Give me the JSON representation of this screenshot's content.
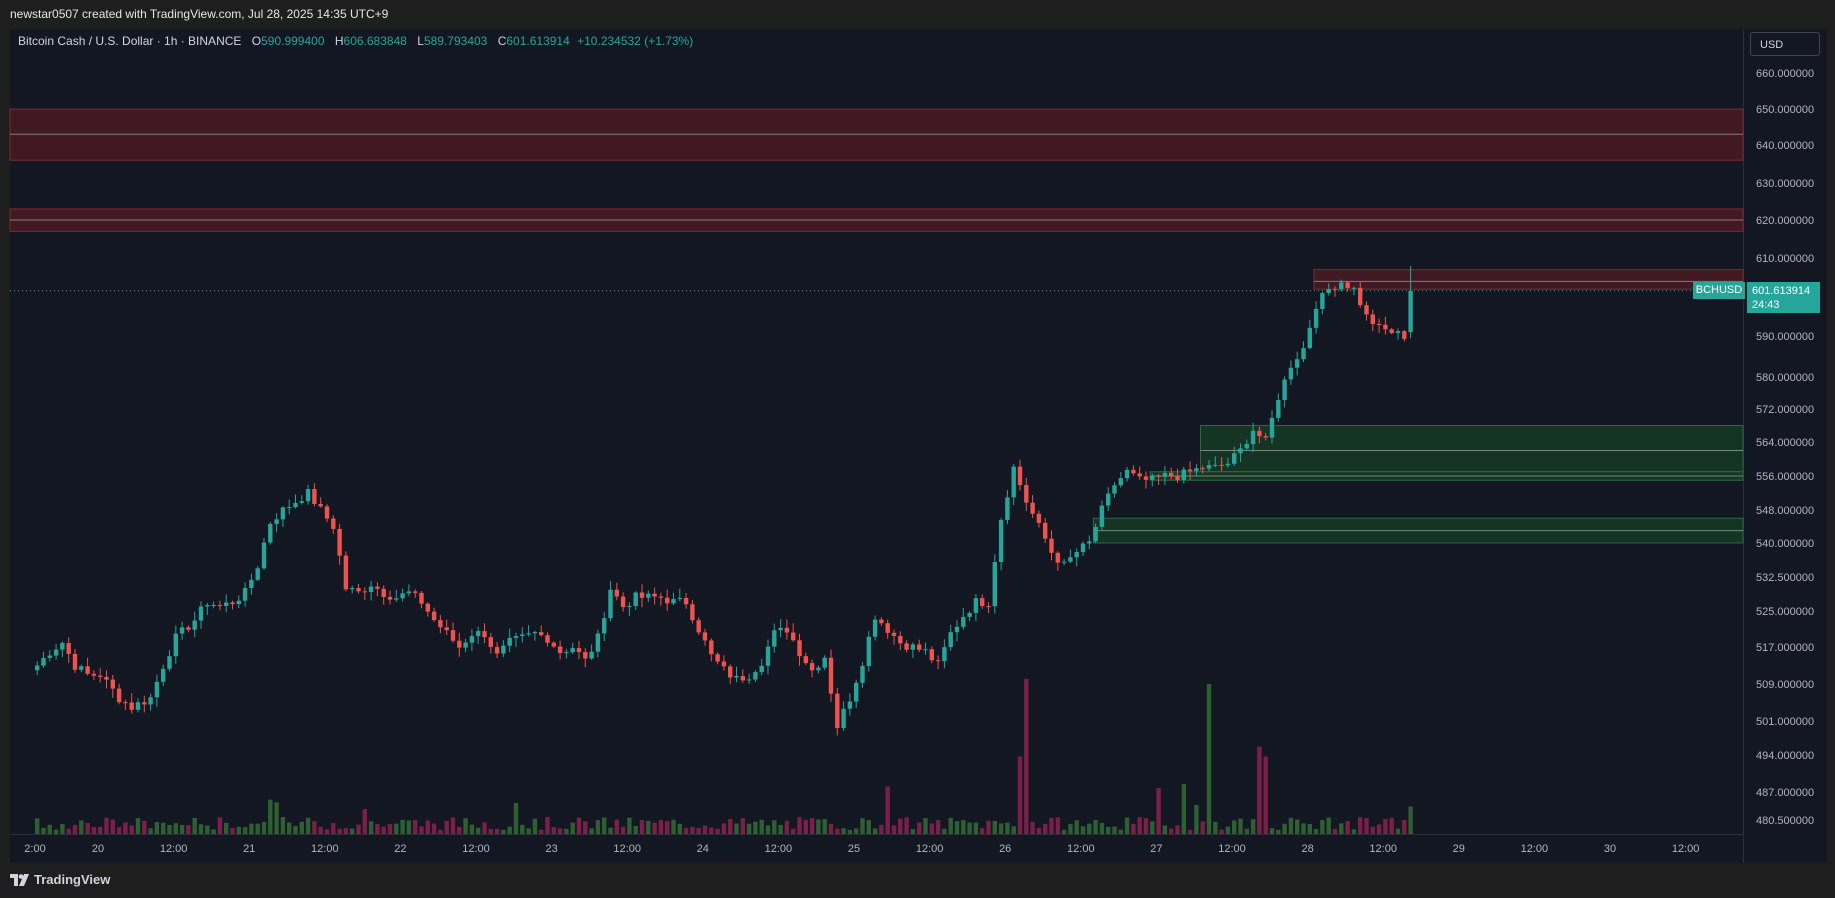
{
  "header": {
    "created_by": "newstar0507 created with TradingView.com, Jul 28, 2025 14:35 UTC+9"
  },
  "legend": {
    "symbol_desc": "Bitcoin Cash / U.S. Dollar · 1h · BINANCE",
    "o_label": "O",
    "o_value": "590.999400",
    "h_label": "H",
    "h_value": "606.683848",
    "l_label": "L",
    "l_value": "589.793403",
    "c_label": "C",
    "c_value": "601.613914",
    "change": "+10.234532 (+1.73%)"
  },
  "axis": {
    "currency_button": "USD",
    "last_price": "601.613914",
    "countdown": "24:43",
    "symbol": "BCHUSD"
  },
  "footer": {
    "brand": "TradingView"
  },
  "colors": {
    "up": "#26a69a",
    "down": "#ef5350",
    "up_volume": "#2e5f33",
    "down_volume": "#7a1f48",
    "resistance_zone": "#4a1a22",
    "support_zone": "#173a24"
  },
  "chart_data": {
    "type": "candlestick",
    "price_ticks": [
      {
        "v": 660,
        "label": "660.000000"
      },
      {
        "v": 650,
        "label": "650.000000"
      },
      {
        "v": 640,
        "label": "640.000000"
      },
      {
        "v": 630,
        "label": "630.000000"
      },
      {
        "v": 620,
        "label": "620.000000"
      },
      {
        "v": 610,
        "label": "610.000000"
      },
      {
        "v": 590,
        "label": "590.000000"
      },
      {
        "v": 580,
        "label": "580.000000"
      },
      {
        "v": 572,
        "label": "572.000000"
      },
      {
        "v": 564,
        "label": "564.000000"
      },
      {
        "v": 556,
        "label": "556.000000"
      },
      {
        "v": 548,
        "label": "548.000000"
      },
      {
        "v": 540,
        "label": "540.000000"
      },
      {
        "v": 532.5,
        "label": "532.500000"
      },
      {
        "v": 525,
        "label": "525.000000"
      },
      {
        "v": 517,
        "label": "517.000000"
      },
      {
        "v": 509,
        "label": "509.000000"
      },
      {
        "v": 501,
        "label": "501.000000"
      },
      {
        "v": 494,
        "label": "494.000000"
      },
      {
        "v": 487,
        "label": "487.000000"
      },
      {
        "v": 480.5,
        "label": "480.500000"
      }
    ],
    "time_ticks": [
      {
        "t": -10,
        "label": "2:00"
      },
      {
        "t": 0,
        "label": "20"
      },
      {
        "t": 12,
        "label": "12:00"
      },
      {
        "t": 24,
        "label": "21"
      },
      {
        "t": 36,
        "label": "12:00"
      },
      {
        "t": 48,
        "label": "22"
      },
      {
        "t": 60,
        "label": "12:00"
      },
      {
        "t": 72,
        "label": "23"
      },
      {
        "t": 84,
        "label": "12:00"
      },
      {
        "t": 96,
        "label": "24"
      },
      {
        "t": 108,
        "label": "12:00"
      },
      {
        "t": 120,
        "label": "25"
      },
      {
        "t": 132,
        "label": "12:00"
      },
      {
        "t": 144,
        "label": "26"
      },
      {
        "t": 156,
        "label": "12:00"
      },
      {
        "t": 168,
        "label": "27"
      },
      {
        "t": 180,
        "label": "12:00"
      },
      {
        "t": 192,
        "label": "28"
      },
      {
        "t": 204,
        "label": "12:00"
      },
      {
        "t": 216,
        "label": "29"
      },
      {
        "t": 228,
        "label": "12:00"
      },
      {
        "t": 240,
        "label": "30"
      },
      {
        "t": 252,
        "label": "12:00"
      }
    ],
    "zones": [
      {
        "kind": "resistance",
        "top": 650,
        "mid": 643,
        "bottom": 636,
        "t_start": -999
      },
      {
        "kind": "resistance",
        "top": 623,
        "mid": 620,
        "bottom": 617,
        "t_start": -999
      },
      {
        "kind": "resistance",
        "top": 607,
        "mid": 604,
        "bottom": 602,
        "t_start": 193
      },
      {
        "kind": "support",
        "top": 568,
        "mid": 562,
        "bottom": 557,
        "t_start": 175
      },
      {
        "kind": "support",
        "top": 557,
        "mid": 556,
        "bottom": 555,
        "t_start": 167
      },
      {
        "kind": "support",
        "top": 546,
        "mid": 543,
        "bottom": 540,
        "t_start": 158
      }
    ],
    "anchors": [
      [
        -10,
        513
      ],
      [
        -8,
        516
      ],
      [
        -6,
        518
      ],
      [
        -4,
        513
      ],
      [
        -2,
        511
      ],
      [
        0,
        511
      ],
      [
        3,
        506
      ],
      [
        5,
        504
      ],
      [
        8,
        506
      ],
      [
        10,
        513
      ],
      [
        12,
        519
      ],
      [
        15,
        523
      ],
      [
        17,
        527
      ],
      [
        19,
        526
      ],
      [
        21,
        527
      ],
      [
        23,
        529
      ],
      [
        25,
        535
      ],
      [
        27,
        545
      ],
      [
        29,
        548
      ],
      [
        31,
        550
      ],
      [
        33,
        552
      ],
      [
        35,
        548
      ],
      [
        37,
        544
      ],
      [
        39,
        530
      ],
      [
        41,
        529
      ],
      [
        43,
        531
      ],
      [
        45,
        529
      ],
      [
        47,
        528
      ],
      [
        49,
        529
      ],
      [
        51,
        527
      ],
      [
        53,
        523
      ],
      [
        55,
        520
      ],
      [
        57,
        517
      ],
      [
        59,
        520
      ],
      [
        61,
        520
      ],
      [
        63,
        515
      ],
      [
        65,
        518
      ],
      [
        67,
        519
      ],
      [
        69,
        520
      ],
      [
        71,
        519
      ],
      [
        73,
        516
      ],
      [
        75,
        517
      ],
      [
        77,
        514
      ],
      [
        79,
        519
      ],
      [
        81,
        530
      ],
      [
        83,
        526
      ],
      [
        85,
        528
      ],
      [
        87,
        528
      ],
      [
        89,
        528
      ],
      [
        91,
        527
      ],
      [
        93,
        527
      ],
      [
        95,
        521
      ],
      [
        97,
        515
      ],
      [
        99,
        512
      ],
      [
        101,
        510
      ],
      [
        103,
        511
      ],
      [
        105,
        514
      ],
      [
        107,
        520
      ],
      [
        109,
        521
      ],
      [
        111,
        516
      ],
      [
        113,
        512
      ],
      [
        115,
        515
      ],
      [
        117,
        500
      ],
      [
        119,
        506
      ],
      [
        121,
        514
      ],
      [
        123,
        524
      ],
      [
        125,
        521
      ],
      [
        127,
        518
      ],
      [
        129,
        517
      ],
      [
        131,
        516
      ],
      [
        133,
        513
      ],
      [
        135,
        520
      ],
      [
        137,
        524
      ],
      [
        139,
        527
      ],
      [
        141,
        527
      ],
      [
        143,
        546
      ],
      [
        145,
        558
      ],
      [
        147,
        550
      ],
      [
        149,
        544
      ],
      [
        151,
        538
      ],
      [
        153,
        535
      ],
      [
        155,
        538
      ],
      [
        157,
        540
      ],
      [
        159,
        548
      ],
      [
        161,
        554
      ],
      [
        163,
        557
      ],
      [
        165,
        555
      ],
      [
        167,
        555
      ],
      [
        169,
        556
      ],
      [
        171,
        556
      ],
      [
        173,
        557
      ],
      [
        175,
        558
      ],
      [
        177,
        558
      ],
      [
        179,
        559
      ],
      [
        181,
        562
      ],
      [
        183,
        567
      ],
      [
        185,
        564
      ],
      [
        187,
        575
      ],
      [
        189,
        583
      ],
      [
        191,
        587
      ],
      [
        193,
        598
      ],
      [
        195,
        602
      ],
      [
        197,
        604
      ],
      [
        199,
        602
      ],
      [
        201,
        595
      ],
      [
        203,
        592
      ],
      [
        205,
        591
      ],
      [
        207,
        590
      ],
      [
        208,
        601.6
      ]
    ],
    "volume_spikes": [
      {
        "t": 125,
        "v": 95
      },
      {
        "t": 168,
        "v": 92
      },
      {
        "t": 172,
        "v": 100
      },
      {
        "t": 174,
        "v": 58
      },
      {
        "t": 208,
        "v": 55
      },
      {
        "t": 146,
        "v": 155
      },
      {
        "t": 147,
        "v": 310
      },
      {
        "t": 176,
        "v": 300
      },
      {
        "t": 184,
        "v": 175
      },
      {
        "t": 185,
        "v": 155
      }
    ],
    "last_close": 601.613914
  }
}
